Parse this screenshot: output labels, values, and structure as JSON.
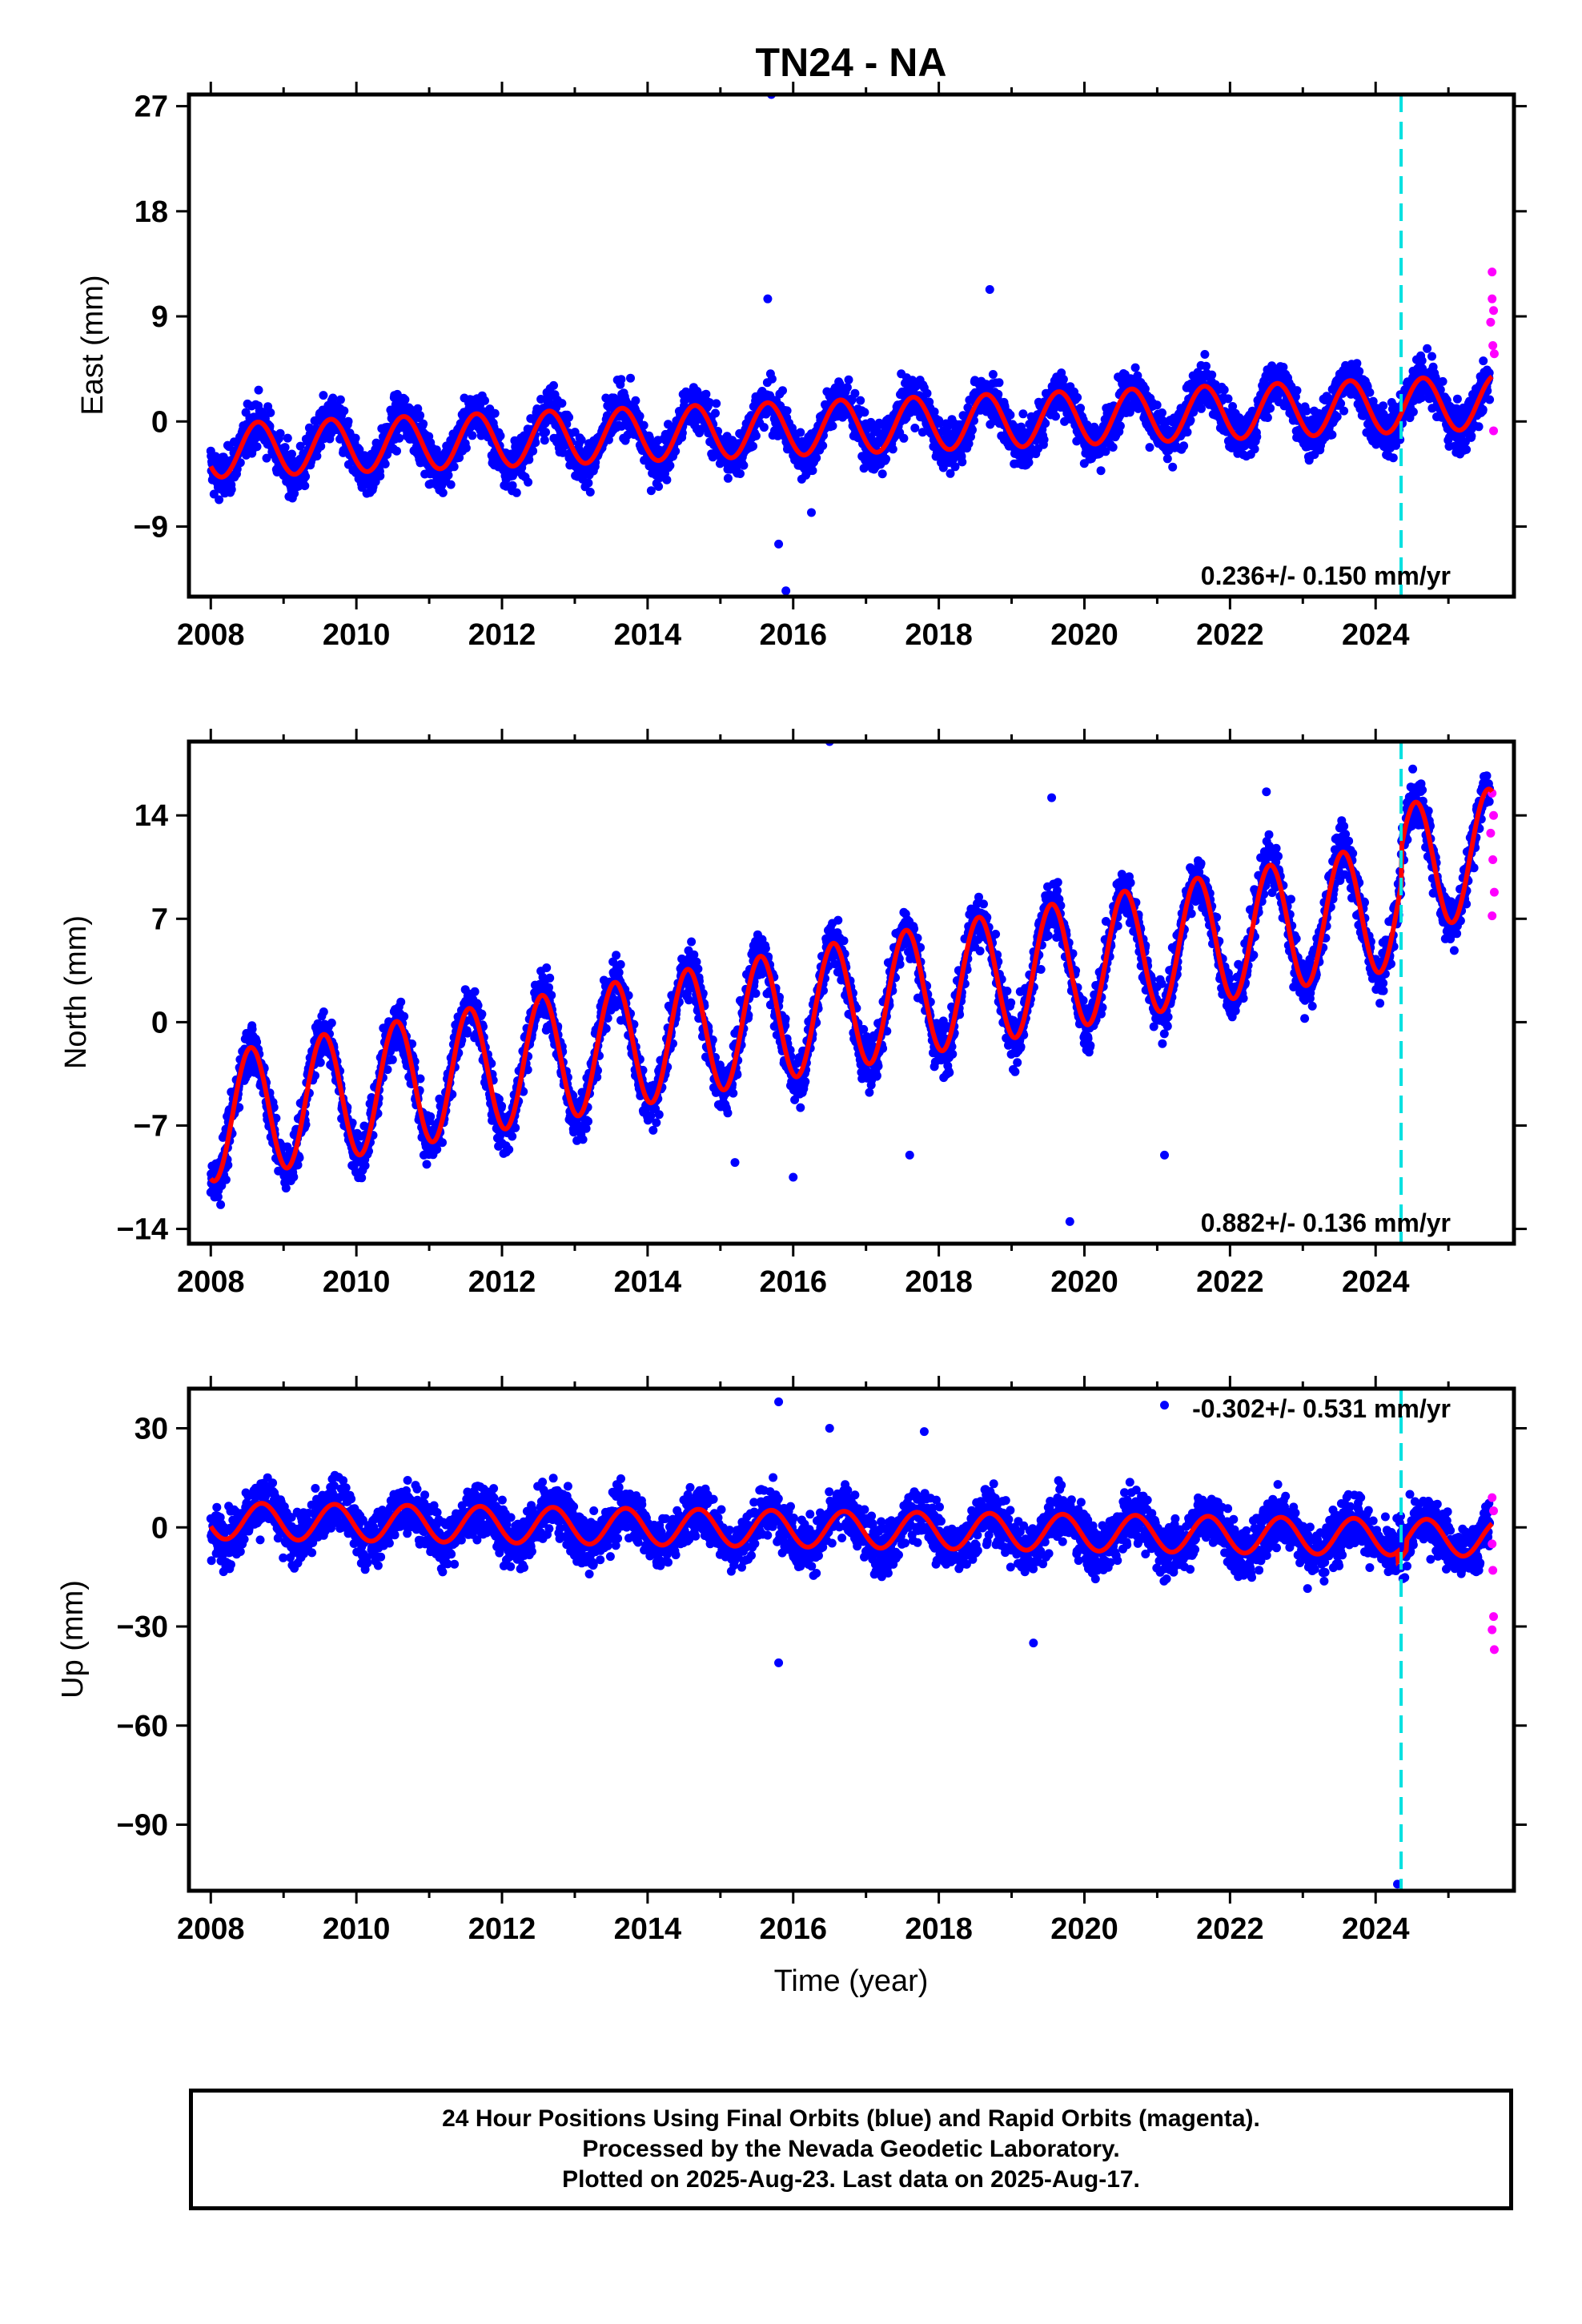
{
  "title": "TN24 - NA",
  "colors": {
    "final_orbits": "#0000ff",
    "rapid_orbits": "#ff00ff",
    "model": "#ff0000",
    "event_line": "#00e0e0"
  },
  "x_axis": {
    "label": "Time (year)",
    "range": [
      2007.7,
      2025.9
    ],
    "ticks": [
      "2008",
      "2010",
      "2012",
      "2014",
      "2016",
      "2018",
      "2020",
      "2022",
      "2024"
    ]
  },
  "event_line_year": 2024.35,
  "caption": {
    "line1": "24 Hour Positions Using Final Orbits (blue) and Rapid Orbits (magenta).",
    "line2": "Processed by the Nevada Geodetic Laboratory.",
    "line3": "Plotted on 2025-Aug-23. Last data on 2025-Aug-17."
  },
  "chart_data": [
    {
      "type": "scatter",
      "component": "east",
      "ylabel": "East (mm)",
      "ylim": [
        -15,
        28
      ],
      "yticks": [
        "27",
        "18",
        "9",
        "0",
        "-9"
      ],
      "rate_label": "0.236+/- 0.150 mm/yr",
      "rate_position": "bottom-right",
      "model": {
        "trend_mm_per_yr": 0.236,
        "offset_mm_at_2008": -2.5,
        "seasonal_amplitude_mm": 2.3,
        "seasonal_peak_phase_yr": 0.65
      },
      "model_points": [
        [
          2008.0,
          -3.3
        ],
        [
          2008.6,
          1.0
        ],
        [
          2009.0,
          -3.2
        ],
        [
          2009.6,
          1.3
        ],
        [
          2010.0,
          -3.0
        ],
        [
          2010.6,
          1.4
        ],
        [
          2011.0,
          -2.8
        ],
        [
          2011.6,
          1.5
        ],
        [
          2012.0,
          -2.6
        ],
        [
          2012.6,
          1.8
        ],
        [
          2013.0,
          -2.2
        ],
        [
          2013.6,
          2.0
        ],
        [
          2014.0,
          -2.0
        ],
        [
          2014.6,
          2.2
        ],
        [
          2015.0,
          -1.8
        ],
        [
          2015.6,
          2.5
        ],
        [
          2016.0,
          -1.6
        ],
        [
          2016.6,
          2.8
        ],
        [
          2017.0,
          -1.3
        ],
        [
          2017.6,
          3.0
        ],
        [
          2018.0,
          -1.0
        ],
        [
          2018.6,
          3.3
        ],
        [
          2019.0,
          -0.8
        ],
        [
          2019.6,
          3.5
        ],
        [
          2020.0,
          -0.5
        ],
        [
          2020.6,
          3.7
        ],
        [
          2021.0,
          -0.3
        ],
        [
          2021.6,
          4.0
        ],
        [
          2022.0,
          0.0
        ],
        [
          2022.6,
          4.2
        ],
        [
          2023.0,
          0.2
        ],
        [
          2023.6,
          4.4
        ],
        [
          2024.0,
          0.5
        ],
        [
          2024.6,
          4.6
        ],
        [
          2025.0,
          0.8
        ],
        [
          2025.6,
          5.0
        ]
      ],
      "outliers": [
        [
          2015.7,
          28.0
        ],
        [
          2015.65,
          10.5
        ],
        [
          2015.8,
          -10.5
        ],
        [
          2015.9,
          -14.5
        ],
        [
          2018.7,
          11.3
        ],
        [
          2016.25,
          -7.8
        ]
      ],
      "rapid_points": [
        [
          2025.6,
          12.8
        ],
        [
          2025.6,
          10.5
        ],
        [
          2025.62,
          9.5
        ],
        [
          2025.58,
          8.5
        ],
        [
          2025.61,
          6.5
        ],
        [
          2025.63,
          5.8
        ],
        [
          2025.62,
          -0.8
        ]
      ]
    },
    {
      "type": "scatter",
      "component": "north",
      "ylabel": "North (mm)",
      "ylim": [
        -15,
        19
      ],
      "yticks": [
        "14",
        "7",
        "0",
        "-7",
        "-14"
      ],
      "rate_label": "0.882+/- 0.136 mm/yr",
      "rate_position": "bottom-right",
      "model": {
        "trend_mm_per_yr": 0.882,
        "offset_mm_at_2008": -6.5,
        "seasonal_amplitude_mm": 4.3,
        "seasonal_peak_phase_yr": 0.55,
        "step_at_event_mm": 2.5
      },
      "model_points": [
        [
          2008.0,
          -10.8
        ],
        [
          2008.55,
          -2.2
        ],
        [
          2009.0,
          -10.2
        ],
        [
          2009.55,
          -1.5
        ],
        [
          2010.0,
          -9.5
        ],
        [
          2010.55,
          -0.8
        ],
        [
          2011.0,
          -8.5
        ],
        [
          2011.55,
          0.2
        ],
        [
          2012.0,
          -7.8
        ],
        [
          2012.55,
          1.0
        ],
        [
          2013.0,
          -6.8
        ],
        [
          2013.55,
          1.8
        ],
        [
          2014.0,
          -6.0
        ],
        [
          2014.55,
          2.8
        ],
        [
          2015.0,
          -5.2
        ],
        [
          2015.55,
          3.6
        ],
        [
          2016.0,
          -4.3
        ],
        [
          2016.55,
          4.5
        ],
        [
          2017.0,
          -3.3
        ],
        [
          2017.55,
          5.5
        ],
        [
          2018.0,
          -2.3
        ],
        [
          2018.55,
          6.3
        ],
        [
          2019.0,
          -1.5
        ],
        [
          2019.55,
          7.2
        ],
        [
          2020.0,
          -0.6
        ],
        [
          2020.55,
          8.0
        ],
        [
          2021.0,
          0.3
        ],
        [
          2021.55,
          8.9
        ],
        [
          2022.0,
          1.2
        ],
        [
          2022.55,
          9.8
        ],
        [
          2023.0,
          2.0
        ],
        [
          2023.55,
          10.5
        ],
        [
          2024.0,
          3.0
        ],
        [
          2024.55,
          15.5
        ],
        [
          2025.0,
          7.8
        ],
        [
          2025.55,
          16.5
        ]
      ],
      "outliers": [
        [
          2016.5,
          19.0
        ],
        [
          2019.55,
          15.2
        ],
        [
          2022.5,
          15.6
        ],
        [
          2019.8,
          -13.5
        ],
        [
          2017.6,
          -9.0
        ],
        [
          2021.1,
          -9.0
        ],
        [
          2016.0,
          -10.5
        ],
        [
          2015.2,
          -9.5
        ]
      ],
      "rapid_points": [
        [
          2025.6,
          15.5
        ],
        [
          2025.62,
          14.0
        ],
        [
          2025.58,
          12.8
        ],
        [
          2025.61,
          11.0
        ],
        [
          2025.63,
          8.8
        ],
        [
          2025.6,
          7.2
        ]
      ]
    },
    {
      "type": "scatter",
      "component": "up",
      "ylabel": "Up (mm)",
      "ylim": [
        -110,
        42
      ],
      "yticks": [
        "30",
        "0",
        "-30",
        "-60",
        "-90"
      ],
      "rate_label": "-0.302+/- 0.531 mm/yr",
      "rate_position": "top-right",
      "model": {
        "trend_mm_per_yr": -0.302,
        "offset_mm_at_2008": 2.0,
        "seasonal_amplitude_mm": 5.5,
        "seasonal_peak_phase_yr": 0.7
      },
      "model_points": [
        [
          2008.0,
          0.0
        ],
        [
          2008.7,
          7.5
        ],
        [
          2009.2,
          -3.0
        ],
        [
          2009.7,
          7.5
        ],
        [
          2010.2,
          -3.5
        ],
        [
          2010.7,
          7.0
        ],
        [
          2011.2,
          -4.0
        ],
        [
          2011.7,
          6.5
        ],
        [
          2012.2,
          -4.0
        ],
        [
          2012.7,
          6.5
        ],
        [
          2013.2,
          -4.5
        ],
        [
          2013.7,
          6.0
        ],
        [
          2014.2,
          -5.0
        ],
        [
          2014.7,
          6.0
        ],
        [
          2015.2,
          -5.5
        ],
        [
          2015.7,
          5.5
        ],
        [
          2016.2,
          -5.5
        ],
        [
          2016.7,
          5.0
        ],
        [
          2017.2,
          -6.0
        ],
        [
          2017.7,
          5.0
        ],
        [
          2018.2,
          -6.5
        ],
        [
          2018.7,
          4.5
        ],
        [
          2019.2,
          -7.0
        ],
        [
          2019.7,
          4.0
        ],
        [
          2020.2,
          -7.0
        ],
        [
          2020.7,
          4.0
        ],
        [
          2021.2,
          -7.0
        ],
        [
          2021.7,
          4.0
        ],
        [
          2022.2,
          -7.5
        ],
        [
          2022.7,
          4.0
        ],
        [
          2023.2,
          -7.5
        ],
        [
          2023.7,
          3.5
        ],
        [
          2024.2,
          -6.0
        ],
        [
          2024.35,
          -9.0
        ],
        [
          2024.7,
          -2.0
        ],
        [
          2025.3,
          -14.5
        ],
        [
          2025.6,
          -3.0
        ]
      ],
      "outliers": [
        [
          2015.8,
          38.0
        ],
        [
          2021.1,
          37.0
        ],
        [
          2015.8,
          -41.0
        ],
        [
          2019.3,
          -35.0
        ],
        [
          2024.3,
          -108.0
        ],
        [
          2016.5,
          30.0
        ],
        [
          2017.8,
          29.0
        ]
      ],
      "rapid_points": [
        [
          2025.6,
          9.0
        ],
        [
          2025.62,
          5.0
        ],
        [
          2025.6,
          -5.0
        ],
        [
          2025.61,
          -13.0
        ],
        [
          2025.62,
          -27.0
        ],
        [
          2025.6,
          -31.0
        ],
        [
          2025.63,
          -37.0
        ]
      ]
    }
  ]
}
